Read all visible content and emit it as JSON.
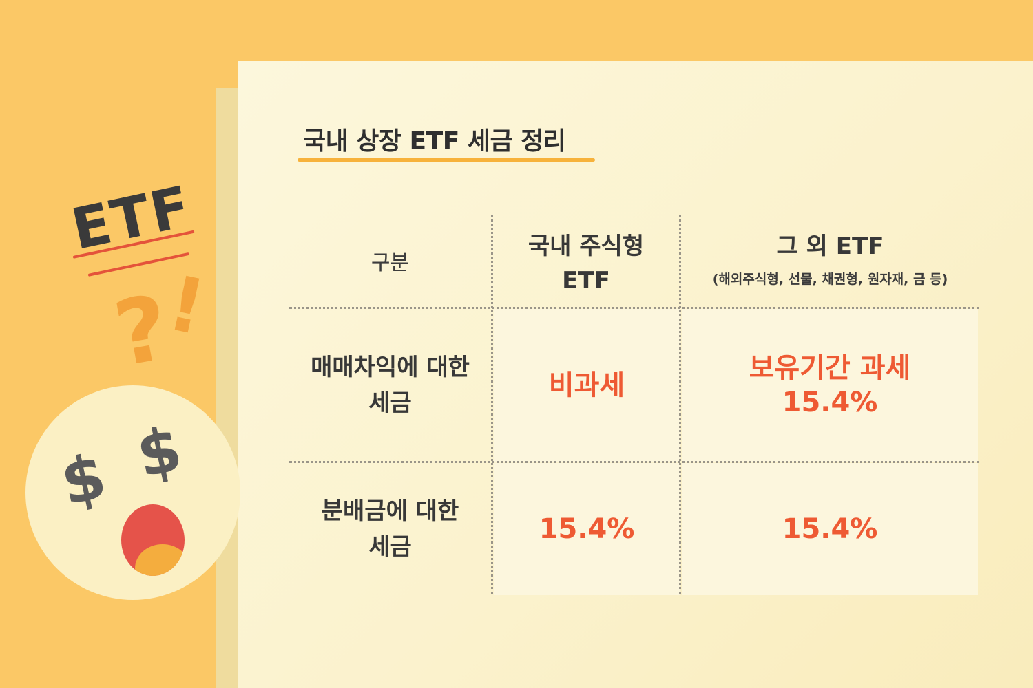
{
  "title": "국내 상장 ETF 세금 정리",
  "decoration": {
    "etf_label": "ETF",
    "question_mark": "?",
    "exclamation_mark": "!",
    "dollar_left": "$",
    "dollar_right": "$"
  },
  "table": {
    "header": {
      "category": "구분",
      "domestic_line1": "국내 주식형",
      "domestic_line2": "ETF",
      "other": "그 외 ETF",
      "other_sub": "(해외주식형, 선물, 채권형, 원자재, 금 등)"
    },
    "rows": [
      {
        "label_line1": "매매차익에 대한",
        "label_line2": "세금",
        "domestic": "비과세",
        "other_line1": "보유기간 과세",
        "other_line2": "15.4%"
      },
      {
        "label_line1": "분배금에 대한",
        "label_line2": "세금",
        "domestic": "15.4%",
        "other": "15.4%"
      }
    ]
  },
  "colors": {
    "background": "#fbc866",
    "paper": "#fcf6dc",
    "accent_red": "#ee5a33",
    "underline_yellow": "#f7b23b",
    "text_dark": "#383838"
  }
}
